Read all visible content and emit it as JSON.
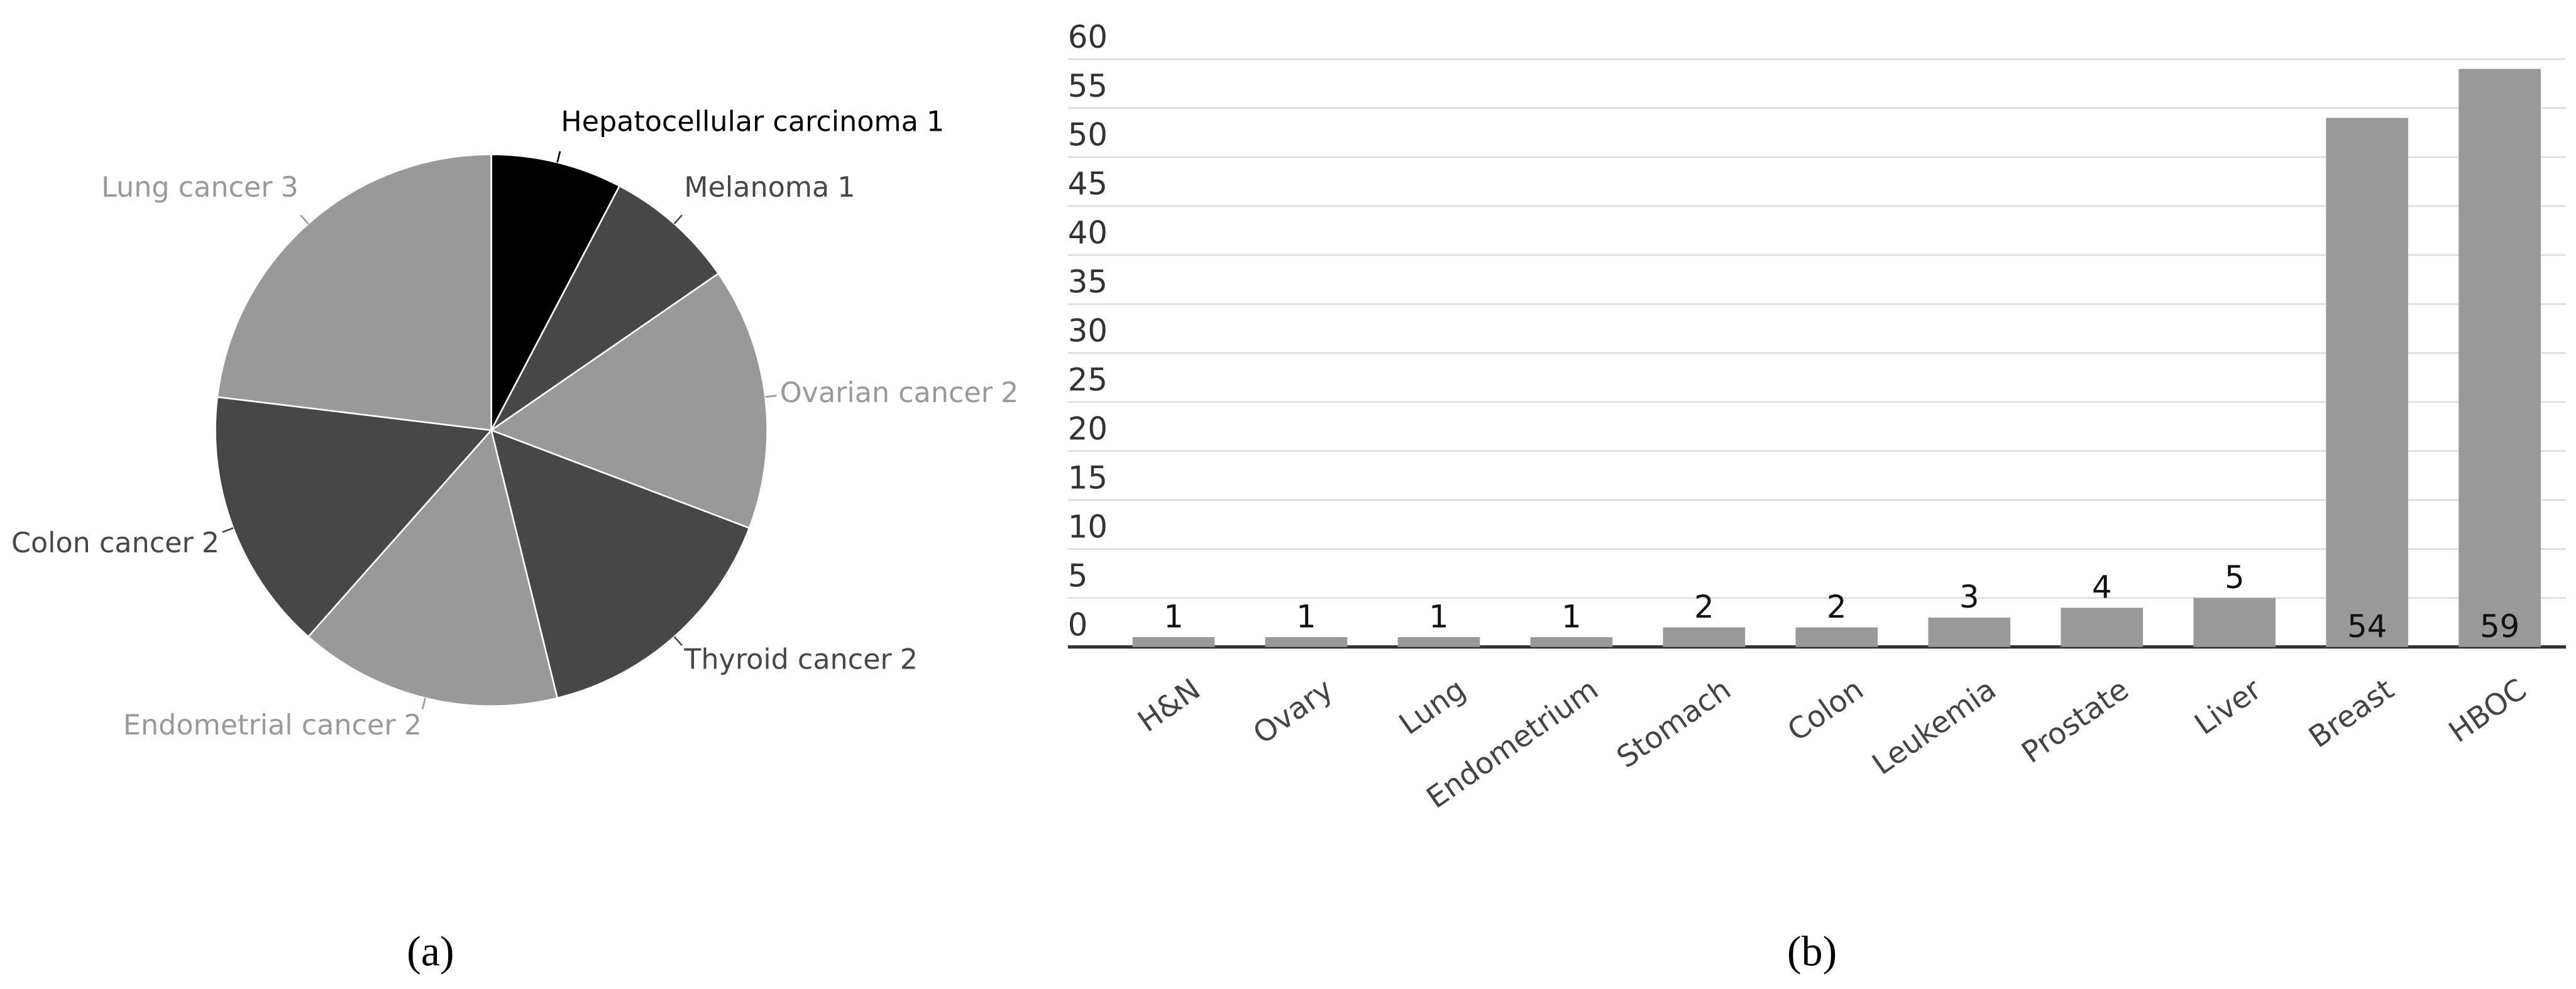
{
  "chart_data": [
    {
      "type": "pie",
      "categories": [
        "Hepatocellular carcinoma",
        "Melanoma",
        "Ovarian cancer",
        "Thyroid cancer",
        "Endometrial cancer",
        "Colon cancer",
        "Lung cancer"
      ],
      "values": [
        1,
        1,
        2,
        2,
        2,
        2,
        3
      ],
      "colors": [
        "#000000",
        "#474747",
        "#999999",
        "#474747",
        "#999999",
        "#474747",
        "#999999"
      ],
      "caption": "(a)"
    },
    {
      "type": "bar",
      "categories": [
        "H&N",
        "Ovary",
        "Lung",
        "Endometrium",
        "Stomach",
        "Colon",
        "Leukemia",
        "Prostate",
        "Liver",
        "Breast",
        "HBOC"
      ],
      "values": [
        1,
        1,
        1,
        1,
        2,
        2,
        3,
        4,
        5,
        54,
        59
      ],
      "color": "#999999",
      "ylim": [
        0,
        60
      ],
      "yticks": [
        0,
        5,
        10,
        15,
        20,
        25,
        30,
        35,
        40,
        45,
        50,
        55,
        60
      ],
      "grid": true,
      "caption": "(b)"
    }
  ]
}
